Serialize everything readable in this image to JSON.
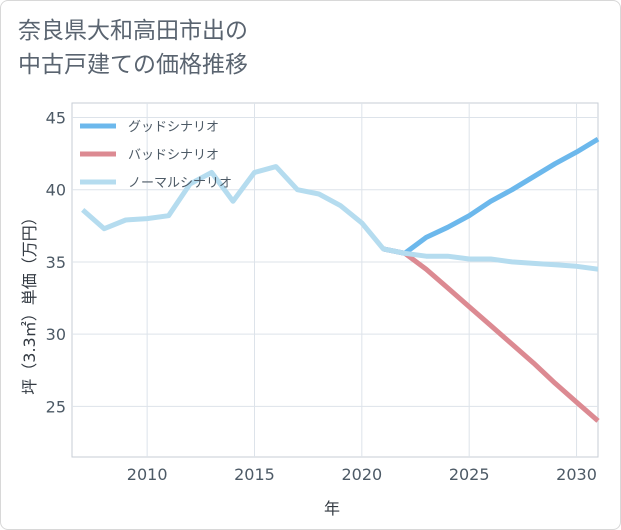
{
  "chart_data": {
    "type": "line",
    "title_lines": [
      "奈良県大和高田市出の",
      "中古戸建ての価格推移"
    ],
    "xlabel": "年",
    "ylabel": "坪（3.3㎡）単価（万円）",
    "xlim": [
      2006.5,
      2031
    ],
    "ylim": [
      21.5,
      46
    ],
    "xticks": [
      2010,
      2015,
      2020,
      2025,
      2030
    ],
    "yticks": [
      25,
      30,
      35,
      40,
      45
    ],
    "legend_position": "top-left",
    "series": [
      {
        "name": "グッドシナリオ",
        "color": "#6cb8ec",
        "x": [
          2021,
          2022,
          2023,
          2024,
          2025,
          2026,
          2027,
          2028,
          2029,
          2030,
          2031
        ],
        "y": [
          35.9,
          35.6,
          36.7,
          37.4,
          38.2,
          39.2,
          40.0,
          40.9,
          41.8,
          42.6,
          43.5
        ]
      },
      {
        "name": "バッドシナリオ",
        "color": "#dc8a92",
        "x": [
          2021,
          2022,
          2023,
          2024,
          2025,
          2026,
          2027,
          2028,
          2029,
          2030,
          2031
        ],
        "y": [
          35.9,
          35.6,
          34.5,
          33.2,
          31.9,
          30.6,
          29.3,
          28.0,
          26.6,
          25.3,
          24.0
        ]
      },
      {
        "name": "ノーマルシナリオ",
        "color": "#b5dcef",
        "x": [
          2007,
          2008,
          2009,
          2010,
          2011,
          2012,
          2013,
          2014,
          2015,
          2016,
          2017,
          2018,
          2019,
          2020,
          2021,
          2022,
          2023,
          2024,
          2025,
          2026,
          2027,
          2028,
          2029,
          2030,
          2031
        ],
        "y": [
          38.6,
          37.3,
          37.9,
          38.0,
          38.2,
          40.4,
          41.2,
          39.2,
          41.2,
          41.6,
          40.0,
          39.7,
          38.9,
          37.7,
          35.9,
          35.6,
          35.4,
          35.4,
          35.2,
          35.2,
          35.0,
          34.9,
          34.8,
          34.7,
          34.5
        ]
      }
    ]
  }
}
